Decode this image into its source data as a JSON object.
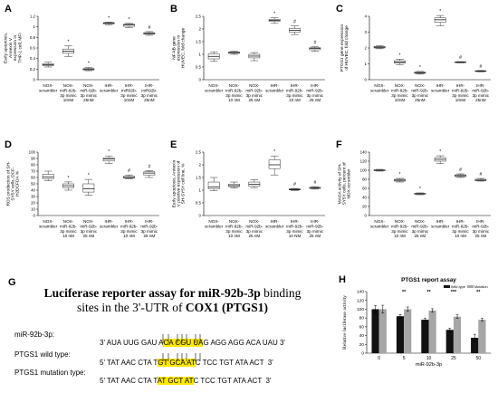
{
  "panels": [
    {
      "id": "A",
      "ylabel_lines": [
        "Early apoptosis,",
        "Annexin V",
        "expression in",
        "THP-1 cell, MFI"
      ],
      "ylim": [
        0,
        1.2
      ],
      "yticks": [
        "0",
        "0.2",
        "0.4",
        "0.6",
        "0.8",
        "1",
        "1.2"
      ],
      "categories": [
        [
          "NOX-",
          "scrambler"
        ],
        [
          "NOX-",
          "miR-92b-",
          "3p mimic",
          "10nM"
        ],
        [
          "NOX-",
          "miR-92b-",
          "3p mimic",
          "25nM"
        ],
        [
          "IHR-",
          "scrambler"
        ],
        [
          "IHR-",
          "miR92b-",
          "3p mimic",
          "10nM"
        ],
        [
          "IHR-",
          "miR92b-",
          "3p mimic",
          "25nM"
        ]
      ],
      "boxes": [
        {
          "min": 0.24,
          "q1": 0.265,
          "med": 0.28,
          "q3": 0.3,
          "max": 0.33,
          "mark": ""
        },
        {
          "min": 0.44,
          "q1": 0.5,
          "med": 0.54,
          "q3": 0.58,
          "max": 0.64,
          "mark": "*"
        },
        {
          "min": 0.17,
          "q1": 0.185,
          "med": 0.195,
          "q3": 0.21,
          "max": 0.23,
          "mark": "*"
        },
        {
          "min": 1.04,
          "q1": 1.06,
          "med": 1.07,
          "q3": 1.08,
          "max": 1.09,
          "mark": "*"
        },
        {
          "min": 0.99,
          "q1": 1.01,
          "med": 1.035,
          "q3": 1.05,
          "max": 1.065,
          "mark": "*"
        },
        {
          "min": 0.84,
          "q1": 0.86,
          "med": 0.875,
          "q3": 0.89,
          "max": 0.91,
          "mark": "#"
        }
      ]
    },
    {
      "id": "B",
      "ylabel_lines": [
        "NF-kB gene",
        "expression in",
        "HUVEC, fold change"
      ],
      "ylim": [
        0,
        2.5
      ],
      "yticks": [
        "0",
        "0.5",
        "1",
        "1.5",
        "2",
        "2.5"
      ],
      "categories": [
        [
          "NOX-",
          "scrambler"
        ],
        [
          "NOX-",
          "miR-92b-",
          "3p mimic",
          "10 nM"
        ],
        [
          "NOX-",
          "miR-92b-",
          "3p mimic",
          "25 nM"
        ],
        [
          "IHR-",
          "scrambler"
        ],
        [
          "IHR-",
          "miR-92b-",
          "3p mimic",
          "10 nM"
        ],
        [
          "IHR-",
          "miR-92b-",
          "3p mimic",
          "25 nM"
        ]
      ],
      "boxes": [
        {
          "min": 0.72,
          "q1": 0.82,
          "med": 0.92,
          "q3": 1.02,
          "max": 1.1,
          "mark": ""
        },
        {
          "min": 1.0,
          "q1": 1.04,
          "med": 1.07,
          "q3": 1.09,
          "max": 1.12,
          "mark": ""
        },
        {
          "min": 0.75,
          "q1": 0.86,
          "med": 0.93,
          "q3": 1.0,
          "max": 1.07,
          "mark": ""
        },
        {
          "min": 2.22,
          "q1": 2.3,
          "med": 2.34,
          "q3": 2.38,
          "max": 2.44,
          "mark": "*"
        },
        {
          "min": 1.78,
          "q1": 1.88,
          "med": 1.95,
          "q3": 2.02,
          "max": 2.12,
          "mark": "#"
        },
        {
          "min": 1.12,
          "q1": 1.18,
          "med": 1.23,
          "q3": 1.26,
          "max": 1.3,
          "mark": "#"
        }
      ]
    },
    {
      "id": "C",
      "ylabel_lines": [
        "PTGS1 gene expression",
        "of HUVEC, fold change"
      ],
      "ylim": [
        0,
        4
      ],
      "yticks": [
        "0",
        "1",
        "2",
        "3",
        "4"
      ],
      "categories": [
        [
          "NOX-",
          "scrambler"
        ],
        [
          "NOX-",
          "miR-92b-",
          "3p mimic",
          "10nM"
        ],
        [
          "NOX-",
          "miR-92b-",
          "3p mimic",
          "25nM"
        ],
        [
          "IHR-",
          "scrambler"
        ],
        [
          "IHR-",
          "miR-92b-",
          "3p mimic",
          "10nM"
        ],
        [
          "IHR-",
          "miR-92b-",
          "3p mimic",
          "25nM"
        ]
      ],
      "boxes": [
        {
          "min": 1.95,
          "q1": 2.0,
          "med": 2.05,
          "q3": 2.1,
          "max": 2.15,
          "mark": ""
        },
        {
          "min": 0.95,
          "q1": 1.05,
          "med": 1.1,
          "q3": 1.2,
          "max": 1.3,
          "mark": "*"
        },
        {
          "min": 0.35,
          "q1": 0.4,
          "med": 0.44,
          "q3": 0.48,
          "max": 0.52,
          "mark": "*"
        },
        {
          "min": 3.4,
          "q1": 3.62,
          "med": 3.78,
          "q3": 3.9,
          "max": 4.05,
          "mark": "*"
        },
        {
          "min": 1.06,
          "q1": 1.08,
          "med": 1.1,
          "q3": 1.12,
          "max": 1.14,
          "mark": "#"
        },
        {
          "min": 0.5,
          "q1": 0.52,
          "med": 0.54,
          "q3": 0.56,
          "max": 0.58,
          "mark": "#"
        }
      ]
    },
    {
      "id": "D",
      "ylabel_lines": [
        "ROS production of SH-",
        "SY5Y cells, DCF-",
        "H2DCFDA %"
      ],
      "ylim": [
        0,
        100
      ],
      "yticks": [
        "0",
        "10",
        "20",
        "30",
        "40",
        "50",
        "60",
        "70",
        "80",
        "90",
        "100"
      ],
      "categories": [
        [
          "NOX-",
          "scrambler"
        ],
        [
          "NOX-",
          "miR-92b-",
          "3p mimic",
          "10 nM"
        ],
        [
          "NOX-",
          "miR-92b-",
          "3p mimic",
          "25 nM"
        ],
        [
          "IHR-",
          "scrambler"
        ],
        [
          "IHR-",
          "miR-92b-",
          "3p mimic",
          "10 nM"
        ],
        [
          "IHR-",
          "miR-92b-",
          "3p mimic",
          "25 nM"
        ]
      ],
      "boxes": [
        {
          "min": 55,
          "q1": 58,
          "med": 61,
          "q3": 65,
          "max": 70,
          "mark": ""
        },
        {
          "min": 40,
          "q1": 44,
          "med": 47,
          "q3": 50,
          "max": 53,
          "mark": "*"
        },
        {
          "min": 32,
          "q1": 37,
          "med": 42,
          "q3": 50,
          "max": 57,
          "mark": "*"
        },
        {
          "min": 82,
          "q1": 86,
          "med": 89,
          "q3": 91,
          "max": 94,
          "mark": "*"
        },
        {
          "min": 58,
          "q1": 59,
          "med": 60,
          "q3": 62,
          "max": 64,
          "mark": "#"
        },
        {
          "min": 60,
          "q1": 64,
          "med": 67,
          "q3": 69,
          "max": 71,
          "mark": "#"
        }
      ]
    },
    {
      "id": "E",
      "ylabel_lines": [
        "Early apoptosis, Annexin",
        "V positive expression of",
        "SH-SY5Y cell line, %"
      ],
      "ylim": [
        0,
        2.5
      ],
      "yticks": [
        "0",
        "0.5",
        "1",
        "1.5",
        "2",
        "2.5"
      ],
      "categories": [
        [
          "NOX-",
          "scrambler"
        ],
        [
          "NOX-",
          "miR-92b-",
          "3p mimic",
          "10 nM"
        ],
        [
          "NOX-",
          "miR-92b-",
          "3p mimic",
          "25 nM"
        ],
        [
          "IHR-",
          "scrambler"
        ],
        [
          "IHR-",
          "miR-92b-",
          "3p mimic",
          "10 NM"
        ],
        [
          "IHR-",
          "miR-92b-",
          "3p mimic",
          "25 nM"
        ]
      ],
      "boxes": [
        {
          "min": 0.98,
          "q1": 1.05,
          "med": 1.12,
          "q3": 1.32,
          "max": 1.5,
          "mark": ""
        },
        {
          "min": 1.08,
          "q1": 1.14,
          "med": 1.18,
          "q3": 1.24,
          "max": 1.32,
          "mark": ""
        },
        {
          "min": 1.1,
          "q1": 1.16,
          "med": 1.23,
          "q3": 1.32,
          "max": 1.42,
          "mark": ""
        },
        {
          "min": 1.6,
          "q1": 1.85,
          "med": 2.0,
          "q3": 2.2,
          "max": 2.35,
          "mark": "*"
        },
        {
          "min": 0.99,
          "q1": 1.01,
          "med": 1.03,
          "q3": 1.05,
          "max": 1.07,
          "mark": "#"
        },
        {
          "min": 1.04,
          "q1": 1.07,
          "med": 1.09,
          "q3": 1.11,
          "max": 1.14,
          "mark": "#"
        }
      ]
    },
    {
      "id": "F",
      "ylabel_lines": [
        "MAOA activity of SH-",
        "SY5Y cells, percent of",
        "NOX-scrambler"
      ],
      "ylim": [
        0,
        140
      ],
      "yticks": [
        "0",
        "20",
        "40",
        "60",
        "80",
        "100",
        "120",
        "140"
      ],
      "categories": [
        [
          "NOX-",
          "scrambler"
        ],
        [
          "NOX-",
          "miR-92b-",
          "3p mimic",
          "10 nM"
        ],
        [
          "NOX-",
          "miR-92b-",
          "3p mimic",
          "25 nM"
        ],
        [
          "IHR-",
          "scrambler"
        ],
        [
          "IHR-",
          "miR-92b-",
          "3p mimic",
          "10 nM"
        ],
        [
          "IHR-",
          "miR-92b-",
          "3p mimic",
          "25 nM"
        ]
      ],
      "boxes": [
        {
          "min": 98,
          "q1": 99,
          "med": 100,
          "q3": 101,
          "max": 102,
          "mark": ""
        },
        {
          "min": 74,
          "q1": 76,
          "med": 78,
          "q3": 80,
          "max": 82,
          "mark": "*"
        },
        {
          "min": 46,
          "q1": 47,
          "med": 48,
          "q3": 49,
          "max": 50,
          "mark": "*"
        },
        {
          "min": 115,
          "q1": 120,
          "med": 124,
          "q3": 128,
          "max": 132,
          "mark": "*"
        },
        {
          "min": 84,
          "q1": 86,
          "med": 88,
          "q3": 90,
          "max": 92,
          "mark": "#"
        },
        {
          "min": 76,
          "q1": 77,
          "med": 78,
          "q3": 80,
          "max": 82,
          "mark": "#"
        }
      ]
    }
  ],
  "panel_g": {
    "label": "G",
    "title_part1": "Luciferase reporter assay for miR-92b-3p",
    "title_part2": " binding",
    "title_line2_a": "sites in the 3",
    "title_line2_prime": "'",
    "title_line2_b": "-UTR of ",
    "title_line2_c": "COX1 (PTGS1)",
    "rows": [
      {
        "name": "miR-92b-3p:",
        "prefix": "3'",
        "seq_pre": " AUA UUG GAU A",
        "seq_hl": "CA CGU UA",
        "seq_post": "G AGG AGG ACA UAU 3'"
      },
      {
        "name": "PTGS1 wild type:",
        "prefix": "5'",
        "seq_pre": " TAT AAC CTA T",
        "seq_hl": "GT GCA AT",
        "seq_post": "C TCC TGT ATA ACT  3'"
      },
      {
        "name": "PTGS1 mutation type:",
        "prefix": "5'",
        "seq_pre": " TAT AAC CTA T",
        "seq_hl": "AT GCT AT",
        "seq_post": "C TCC TGT ATA ACT  3'"
      }
    ]
  },
  "chart_data": {
    "type": "bar",
    "panel": "H",
    "title": "PTGS1 report assay",
    "xlabel": "miR-92b-3p",
    "ylabel": "Relative luciferase activity",
    "ylim": [
      0,
      140
    ],
    "yticks": [
      "0",
      "20",
      "40",
      "60",
      "80",
      "100",
      "120",
      "140"
    ],
    "categories": [
      "0",
      "5",
      "10",
      "25",
      "50"
    ],
    "series": [
      {
        "name": "Wild-type",
        "color": "#111111",
        "values": [
          100,
          84,
          76,
          53,
          35
        ],
        "errors": [
          8,
          4,
          3,
          4,
          8
        ]
      },
      {
        "name": "Mutation",
        "color": "#a6a6a6",
        "values": [
          100,
          100,
          97,
          83,
          76
        ],
        "errors": [
          9,
          5,
          4,
          4,
          3
        ]
      }
    ],
    "annotations": [
      "",
      "**",
      "**",
      "***",
      "**"
    ]
  }
}
